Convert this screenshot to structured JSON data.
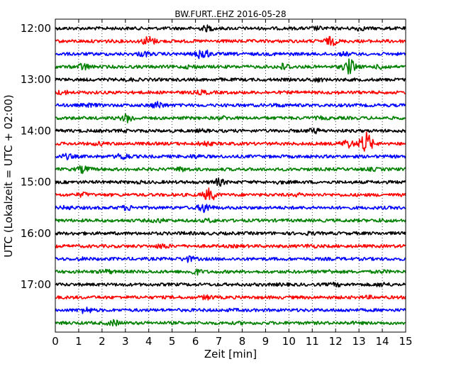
{
  "chart_data": {
    "type": "line",
    "title": "BW.FURT..EHZ 2016-05-28",
    "xlabel": "Zeit  [min]",
    "ylabel": "UTC (Lokalzeit = UTC + 02:00)",
    "xlim": [
      0,
      15
    ],
    "x_ticks": [
      0,
      1,
      2,
      3,
      4,
      5,
      6,
      7,
      8,
      9,
      10,
      11,
      12,
      13,
      14,
      15
    ],
    "x_tick_labels": [
      "0",
      "1",
      "2",
      "3",
      "4",
      "5",
      "6",
      "7",
      "8",
      "9",
      "10",
      "11",
      "12",
      "13",
      "14",
      "15"
    ],
    "y_tick_labels": [
      "12:00",
      "13:00",
      "14:00",
      "15:00",
      "16:00",
      "17:00"
    ],
    "grid": "vertical dotted at each minute",
    "series_colors": [
      "#000000",
      "#ff0000",
      "#0000ff",
      "#008000"
    ],
    "traces": [
      {
        "start": "12:00",
        "color": "#000000",
        "events": [
          [
            6.5,
            1.6
          ],
          [
            11.2,
            1.3
          ],
          [
            13.0,
            1.4
          ],
          [
            2.0,
            1.0
          ]
        ]
      },
      {
        "start": "12:15",
        "color": "#ff0000",
        "events": [
          [
            4.0,
            2.2
          ],
          [
            11.8,
            2.0
          ],
          [
            2.2,
            1.1
          ],
          [
            14.5,
            1.1
          ]
        ]
      },
      {
        "start": "12:30",
        "color": "#0000ff",
        "events": [
          [
            6.3,
            2.5
          ],
          [
            3.8,
            1.5
          ],
          [
            12.4,
            1.3
          ],
          [
            9.6,
            1.1
          ]
        ]
      },
      {
        "start": "12:45",
        "color": "#008000",
        "events": [
          [
            12.6,
            3.0
          ],
          [
            1.2,
            1.8
          ],
          [
            9.8,
            1.8
          ],
          [
            14.0,
            1.5
          ],
          [
            5.8,
            1.3
          ]
        ]
      },
      {
        "start": "13:00",
        "color": "#000000",
        "events": [
          [
            11.2,
            1.4
          ],
          [
            3.2,
            1.2
          ],
          [
            7.0,
            1.1
          ]
        ]
      },
      {
        "start": "13:15",
        "color": "#ff0000",
        "events": [
          [
            6.3,
            1.4
          ],
          [
            0.3,
            1.4
          ],
          [
            12.0,
            1.1
          ]
        ]
      },
      {
        "start": "13:30",
        "color": "#0000ff",
        "events": [
          [
            4.4,
            1.8
          ],
          [
            1.5,
            1.3
          ],
          [
            9.5,
            1.2
          ]
        ]
      },
      {
        "start": "13:45",
        "color": "#008000",
        "events": [
          [
            3.1,
            2.0
          ],
          [
            7.2,
            1.3
          ],
          [
            11.4,
            1.2
          ]
        ]
      },
      {
        "start": "14:00",
        "color": "#000000",
        "events": [
          [
            11.1,
            1.5
          ],
          [
            6.3,
            1.2
          ],
          [
            3.0,
            1.1
          ]
        ]
      },
      {
        "start": "14:15",
        "color": "#ff0000",
        "events": [
          [
            13.3,
            4.0
          ],
          [
            12.5,
            2.0
          ],
          [
            6.4,
            1.5
          ],
          [
            1.9,
            1.3
          ]
        ]
      },
      {
        "start": "14:30",
        "color": "#0000ff",
        "events": [
          [
            2.9,
            1.8
          ],
          [
            0.5,
            1.5
          ],
          [
            6.0,
            1.3
          ]
        ]
      },
      {
        "start": "14:45",
        "color": "#008000",
        "events": [
          [
            1.2,
            1.8
          ],
          [
            5.4,
            1.4
          ],
          [
            13.6,
            1.2
          ]
        ]
      },
      {
        "start": "15:00",
        "color": "#000000",
        "events": [
          [
            7.0,
            1.8
          ],
          [
            3.6,
            1.1
          ],
          [
            9.6,
            1.2
          ]
        ]
      },
      {
        "start": "15:15",
        "color": "#ff0000",
        "events": [
          [
            6.6,
            2.6
          ],
          [
            1.2,
            1.4
          ],
          [
            10.4,
            1.2
          ]
        ]
      },
      {
        "start": "15:30",
        "color": "#0000ff",
        "events": [
          [
            6.4,
            2.2
          ],
          [
            3.1,
            1.5
          ],
          [
            0.5,
            1.3
          ]
        ]
      },
      {
        "start": "15:45",
        "color": "#008000",
        "events": [
          [
            4.4,
            1.4
          ],
          [
            6.6,
            1.3
          ],
          [
            14.0,
            1.2
          ]
        ]
      },
      {
        "start": "16:00",
        "color": "#000000",
        "events": [
          [
            10.9,
            1.2
          ],
          [
            1.0,
            1.1
          ],
          [
            5.6,
            1.1
          ]
        ]
      },
      {
        "start": "16:15",
        "color": "#ff0000",
        "events": [
          [
            4.6,
            1.5
          ],
          [
            10.9,
            1.3
          ],
          [
            7.8,
            1.1
          ]
        ]
      },
      {
        "start": "16:30",
        "color": "#0000ff",
        "events": [
          [
            5.7,
            1.6
          ],
          [
            1.1,
            1.2
          ],
          [
            12.0,
            1.1
          ]
        ]
      },
      {
        "start": "16:45",
        "color": "#008000",
        "events": [
          [
            6.0,
            1.6
          ],
          [
            2.2,
            1.4
          ],
          [
            11.7,
            1.3
          ],
          [
            14.0,
            1.2
          ]
        ]
      },
      {
        "start": "17:00",
        "color": "#000000",
        "events": [
          [
            14.0,
            1.4
          ],
          [
            12.0,
            1.3
          ],
          [
            9.7,
            1.1
          ]
        ]
      },
      {
        "start": "17:15",
        "color": "#ff0000",
        "events": [
          [
            6.5,
            1.4
          ],
          [
            13.4,
            1.2
          ],
          [
            3.0,
            1.0
          ]
        ]
      },
      {
        "start": "17:30",
        "color": "#0000ff",
        "events": [
          [
            1.3,
            1.7
          ],
          [
            7.6,
            1.1
          ],
          [
            12.4,
            1.1
          ]
        ]
      },
      {
        "start": "17:45",
        "color": "#008000",
        "events": [
          [
            2.5,
            1.6
          ],
          [
            8.0,
            1.1
          ],
          [
            12.6,
            1.1
          ]
        ]
      }
    ]
  }
}
